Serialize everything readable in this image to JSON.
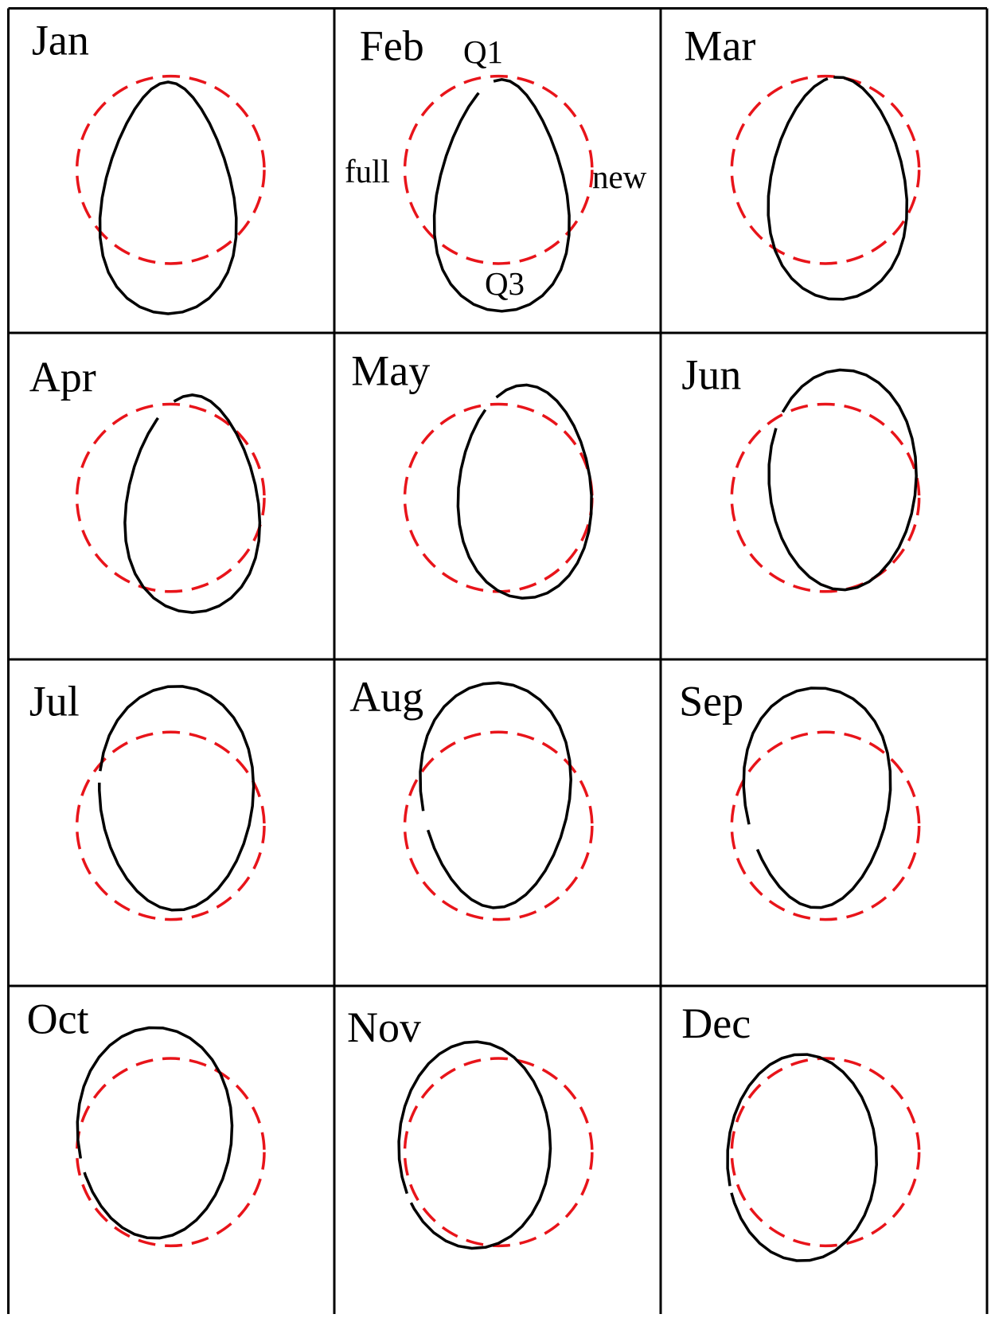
{
  "panels": [
    {
      "label": "Jan"
    },
    {
      "label": "Feb"
    },
    {
      "label": "Mar"
    },
    {
      "label": "Apr"
    },
    {
      "label": "May"
    },
    {
      "label": "Jun"
    },
    {
      "label": "Jul"
    },
    {
      "label": "Aug"
    },
    {
      "label": "Sep"
    },
    {
      "label": "Oct"
    },
    {
      "label": "Nov"
    },
    {
      "label": "Dec"
    }
  ],
  "annotations": {
    "q1": "Q1",
    "full": "full",
    "new": "new",
    "q3": "Q3"
  }
}
